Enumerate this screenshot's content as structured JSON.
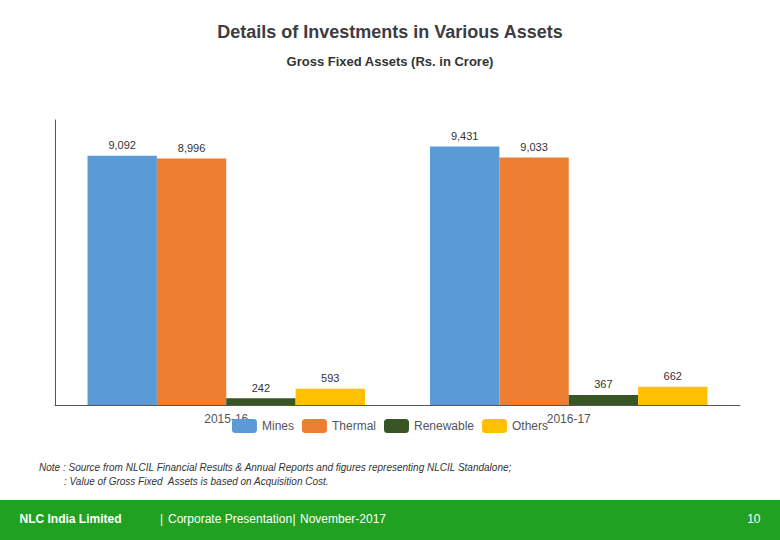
{
  "chart_data": {
    "type": "bar",
    "title": "Details of Investments in Various Assets",
    "subtitle": "Gross Fixed Assets (Rs. in Crore)",
    "categories": [
      "2015-16",
      "2016-17"
    ],
    "series": [
      {
        "name": "Mines",
        "color": "#5b9bd5",
        "values": [
          9092,
          9431
        ],
        "value_labels": [
          "9,092",
          "9,431"
        ]
      },
      {
        "name": "Thermal",
        "color": "#ed7d31",
        "values": [
          8996,
          9033
        ],
        "value_labels": [
          "8,996",
          "9,033"
        ]
      },
      {
        "name": "Renewable",
        "color": "#375623",
        "values": [
          242,
          367
        ],
        "value_labels": [
          "242",
          "367"
        ]
      },
      {
        "name": "Others",
        "color": "#ffc000",
        "values": [
          593,
          662
        ],
        "value_labels": [
          "593",
          "662"
        ]
      }
    ],
    "ylim": [
      0,
      10400
    ],
    "grid": false,
    "legend": "bottom",
    "data_labels": true,
    "tick_labels": "x",
    "annotations": [
      "Note : Source from NLCIL Financial Results & Annual Reports and figures representing NLCIL Standalone;",
      "         : Value of Gross Fixed  Assets is based on Acquisition Cost."
    ],
    "footer": [
      "NLC India Limited",
      "|",
      "Corporate Presentation",
      "|",
      "November-2017",
      "10"
    ]
  }
}
